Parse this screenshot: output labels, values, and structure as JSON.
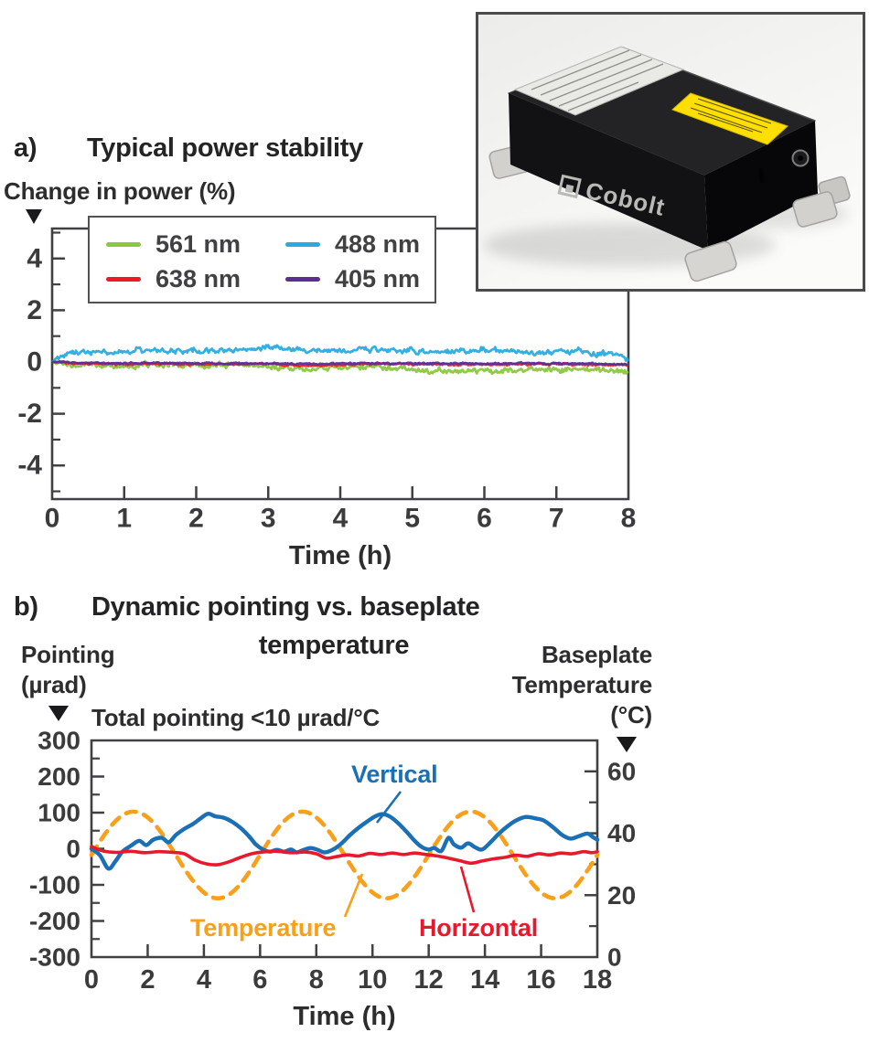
{
  "figure": {
    "panel_a": {
      "label": "a)",
      "title": "Typical power stability",
      "y_axis_label": "Change in power (%)",
      "legend": [
        {
          "label": "561 nm",
          "color": "#8dc63f"
        },
        {
          "label": "638 nm",
          "color": "#ed1c24"
        },
        {
          "label": "488 nm",
          "color": "#29abe2"
        },
        {
          "label": "405 nm",
          "color": "#5c2e91"
        }
      ]
    },
    "panel_b": {
      "label": "b)",
      "title_line1": "Dynamic pointing vs. baseplate",
      "title_line2": "temperature",
      "left_axis_label_line1": "Pointing",
      "left_axis_label_line2": "(µrad)",
      "right_axis_label_line1": "Baseplate",
      "right_axis_label_line2": "Temperature",
      "right_axis_label_line3": "(°C)",
      "annotation": "Total pointing <10 µrad/°C",
      "series_labels": {
        "vertical": "Vertical",
        "temperature": "Temperature",
        "horizontal": "Horizontal"
      }
    },
    "inset": {
      "brand": "Cobolt"
    }
  },
  "chart_data": [
    {
      "type": "line",
      "title": "Typical power stability",
      "xlabel": "Time (h)",
      "ylabel": "Change in power (%)",
      "xlim": [
        0,
        8
      ],
      "ylim": [
        -5.3,
        5.2
      ],
      "x_ticks": [
        0,
        1,
        2,
        3,
        4,
        5,
        6,
        7,
        8
      ],
      "y_ticks": [
        -4,
        -2,
        0,
        2,
        4
      ],
      "y_minor_ticks": [
        -5,
        -3,
        -1,
        1,
        3,
        5
      ],
      "grid": false,
      "legend_position": "top-left",
      "series": [
        {
          "name": "561 nm",
          "color": "#8dc63f",
          "noise_amp": 0.085,
          "trend": [
            [
              0,
              0
            ],
            [
              0.2,
              -0.12
            ],
            [
              0.5,
              -0.1
            ],
            [
              0.9,
              -0.16
            ],
            [
              1.3,
              -0.12
            ],
            [
              1.7,
              -0.1
            ],
            [
              2.1,
              -0.16
            ],
            [
              2.5,
              -0.12
            ],
            [
              2.9,
              -0.14
            ],
            [
              3.2,
              -0.2
            ],
            [
              3.5,
              -0.26
            ],
            [
              3.9,
              -0.22
            ],
            [
              4.3,
              -0.18
            ],
            [
              4.7,
              -0.24
            ],
            [
              5.1,
              -0.3
            ],
            [
              5.5,
              -0.34
            ],
            [
              5.9,
              -0.36
            ],
            [
              6.3,
              -0.33
            ],
            [
              6.7,
              -0.3
            ],
            [
              7.1,
              -0.28
            ],
            [
              7.5,
              -0.3
            ],
            [
              7.8,
              -0.32
            ],
            [
              8,
              -0.35
            ]
          ]
        },
        {
          "name": "638 nm",
          "color": "#ed1c24",
          "noise_amp": 0.03,
          "trend": [
            [
              0,
              0
            ],
            [
              0.4,
              -0.06
            ],
            [
              0.9,
              -0.09
            ],
            [
              1.4,
              -0.07
            ],
            [
              1.9,
              -0.1
            ],
            [
              2.4,
              -0.08
            ],
            [
              2.9,
              -0.07
            ],
            [
              3.3,
              -0.12
            ],
            [
              3.7,
              -0.14
            ],
            [
              4.2,
              -0.1
            ],
            [
              4.7,
              -0.08
            ],
            [
              5.2,
              -0.1
            ],
            [
              5.7,
              -0.09
            ],
            [
              6.2,
              -0.1
            ],
            [
              6.7,
              -0.08
            ],
            [
              7.2,
              -0.09
            ],
            [
              7.6,
              -0.11
            ],
            [
              8,
              -0.13
            ]
          ]
        },
        {
          "name": "488 nm",
          "color": "#29abe2",
          "noise_amp": 0.09,
          "trend": [
            [
              0,
              0
            ],
            [
              0.15,
              0.28
            ],
            [
              0.4,
              0.38
            ],
            [
              0.8,
              0.42
            ],
            [
              1.2,
              0.46
            ],
            [
              1.6,
              0.43
            ],
            [
              2.0,
              0.42
            ],
            [
              2.4,
              0.46
            ],
            [
              2.8,
              0.5
            ],
            [
              3.1,
              0.54
            ],
            [
              3.4,
              0.48
            ],
            [
              3.8,
              0.44
            ],
            [
              4.1,
              0.42
            ],
            [
              4.4,
              0.5
            ],
            [
              4.7,
              0.45
            ],
            [
              5.0,
              0.42
            ],
            [
              5.4,
              0.38
            ],
            [
              5.8,
              0.42
            ],
            [
              6.1,
              0.46
            ],
            [
              6.4,
              0.4
            ],
            [
              6.7,
              0.32
            ],
            [
              7.0,
              0.36
            ],
            [
              7.3,
              0.42
            ],
            [
              7.6,
              0.34
            ],
            [
              7.85,
              0.28
            ],
            [
              8,
              0.05
            ]
          ]
        },
        {
          "name": "405 nm",
          "color": "#5c2e91",
          "noise_amp": 0.025,
          "trend": [
            [
              0,
              0
            ],
            [
              0.5,
              -0.04
            ],
            [
              1.0,
              -0.05
            ],
            [
              1.5,
              -0.04
            ],
            [
              2.0,
              -0.06
            ],
            [
              2.5,
              -0.05
            ],
            [
              3.0,
              -0.05
            ],
            [
              3.5,
              -0.07
            ],
            [
              4.0,
              -0.06
            ],
            [
              4.5,
              -0.05
            ],
            [
              5.0,
              -0.06
            ],
            [
              5.5,
              -0.05
            ],
            [
              6.0,
              -0.06
            ],
            [
              6.5,
              -0.05
            ],
            [
              7.0,
              -0.06
            ],
            [
              7.5,
              -0.06
            ],
            [
              8,
              -0.1
            ]
          ]
        }
      ]
    },
    {
      "type": "line",
      "title": "Dynamic pointing vs. baseplate temperature",
      "xlabel": "Time (h)",
      "ylabel_left": "Pointing (µrad)",
      "ylabel_right": "Baseplate Temperature (°C)",
      "annotation": "Total pointing <10 µrad/°C",
      "xlim": [
        0,
        18
      ],
      "ylim_left": [
        -300,
        300
      ],
      "ylim_right": [
        0,
        70
      ],
      "x_ticks": [
        0,
        2,
        4,
        6,
        8,
        10,
        12,
        14,
        16,
        18
      ],
      "left_ticks": [
        -300,
        -200,
        -100,
        0,
        100,
        200,
        300
      ],
      "left_minor_ticks": [
        -250,
        -150,
        -50,
        50,
        150,
        250
      ],
      "right_ticks": [
        0,
        20,
        40,
        60
      ],
      "right_minor_ticks": [
        10,
        30,
        50
      ],
      "grid": false,
      "series": [
        {
          "name": "Vertical",
          "axis": "left",
          "color": "#1b6fb5",
          "style": "solid",
          "points": [
            [
              0,
              0
            ],
            [
              0.3,
              -18
            ],
            [
              0.6,
              -55
            ],
            [
              0.85,
              -35
            ],
            [
              1.1,
              -8
            ],
            [
              1.4,
              8
            ],
            [
              1.7,
              22
            ],
            [
              1.95,
              10
            ],
            [
              2.2,
              25
            ],
            [
              2.5,
              30
            ],
            [
              2.75,
              18
            ],
            [
              3.0,
              38
            ],
            [
              3.3,
              55
            ],
            [
              3.6,
              68
            ],
            [
              3.9,
              85
            ],
            [
              4.15,
              97
            ],
            [
              4.4,
              90
            ],
            [
              4.7,
              86
            ],
            [
              5.0,
              75
            ],
            [
              5.3,
              58
            ],
            [
              5.6,
              35
            ],
            [
              5.85,
              12
            ],
            [
              6.1,
              -2
            ],
            [
              6.35,
              -8
            ],
            [
              6.6,
              -3
            ],
            [
              6.85,
              -8
            ],
            [
              7.1,
              -2
            ],
            [
              7.3,
              -10
            ],
            [
              7.55,
              -3
            ],
            [
              7.8,
              2
            ],
            [
              8.05,
              -3
            ],
            [
              8.3,
              -10
            ],
            [
              8.6,
              -2
            ],
            [
              8.9,
              15
            ],
            [
              9.2,
              38
            ],
            [
              9.5,
              58
            ],
            [
              9.8,
              75
            ],
            [
              10.1,
              90
            ],
            [
              10.35,
              96
            ],
            [
              10.6,
              90
            ],
            [
              10.9,
              72
            ],
            [
              11.2,
              48
            ],
            [
              11.5,
              22
            ],
            [
              11.75,
              5
            ],
            [
              12.0,
              -2
            ],
            [
              12.2,
              2
            ],
            [
              12.45,
              -6
            ],
            [
              12.7,
              30
            ],
            [
              12.9,
              12
            ],
            [
              13.15,
              3
            ],
            [
              13.4,
              15
            ],
            [
              13.65,
              4
            ],
            [
              13.9,
              -2
            ],
            [
              14.2,
              18
            ],
            [
              14.5,
              42
            ],
            [
              14.8,
              62
            ],
            [
              15.1,
              78
            ],
            [
              15.45,
              88
            ],
            [
              15.8,
              84
            ],
            [
              16.1,
              78
            ],
            [
              16.45,
              58
            ],
            [
              16.75,
              38
            ],
            [
              17.05,
              28
            ],
            [
              17.35,
              35
            ],
            [
              17.65,
              42
            ],
            [
              17.85,
              32
            ],
            [
              18,
              25
            ]
          ]
        },
        {
          "name": "Horizontal",
          "axis": "left",
          "color": "#e8192c",
          "style": "solid",
          "points": [
            [
              0,
              6
            ],
            [
              0.4,
              -6
            ],
            [
              0.9,
              -10
            ],
            [
              1.4,
              -7
            ],
            [
              1.9,
              -11
            ],
            [
              2.4,
              -8
            ],
            [
              2.9,
              -10
            ],
            [
              3.3,
              -14
            ],
            [
              3.7,
              -32
            ],
            [
              4.1,
              -42
            ],
            [
              4.5,
              -44
            ],
            [
              4.9,
              -36
            ],
            [
              5.3,
              -24
            ],
            [
              5.7,
              -14
            ],
            [
              6.1,
              -9
            ],
            [
              6.6,
              -7
            ],
            [
              7.1,
              -11
            ],
            [
              7.6,
              -9
            ],
            [
              8.0,
              -14
            ],
            [
              8.35,
              -26
            ],
            [
              8.7,
              -22
            ],
            [
              9.1,
              -17
            ],
            [
              9.5,
              -20
            ],
            [
              9.9,
              -13
            ],
            [
              10.3,
              -16
            ],
            [
              10.7,
              -12
            ],
            [
              11.1,
              -16
            ],
            [
              11.5,
              -12
            ],
            [
              11.9,
              -16
            ],
            [
              12.3,
              -20
            ],
            [
              12.7,
              -26
            ],
            [
              13.1,
              -33
            ],
            [
              13.5,
              -40
            ],
            [
              13.9,
              -34
            ],
            [
              14.3,
              -28
            ],
            [
              14.7,
              -24
            ],
            [
              15.1,
              -18
            ],
            [
              15.5,
              -21
            ],
            [
              15.9,
              -14
            ],
            [
              16.3,
              -17
            ],
            [
              16.7,
              -12
            ],
            [
              17.1,
              -14
            ],
            [
              17.5,
              -8
            ],
            [
              17.8,
              -11
            ],
            [
              18,
              -8
            ]
          ]
        },
        {
          "name": "Temperature",
          "axis": "right",
          "color": "#f9a01b",
          "style": "dashed",
          "sine_params_c": {
            "mean": 33,
            "amplitude": 14,
            "period_h": 6,
            "first_peak_h": 1.5
          }
        }
      ]
    }
  ]
}
